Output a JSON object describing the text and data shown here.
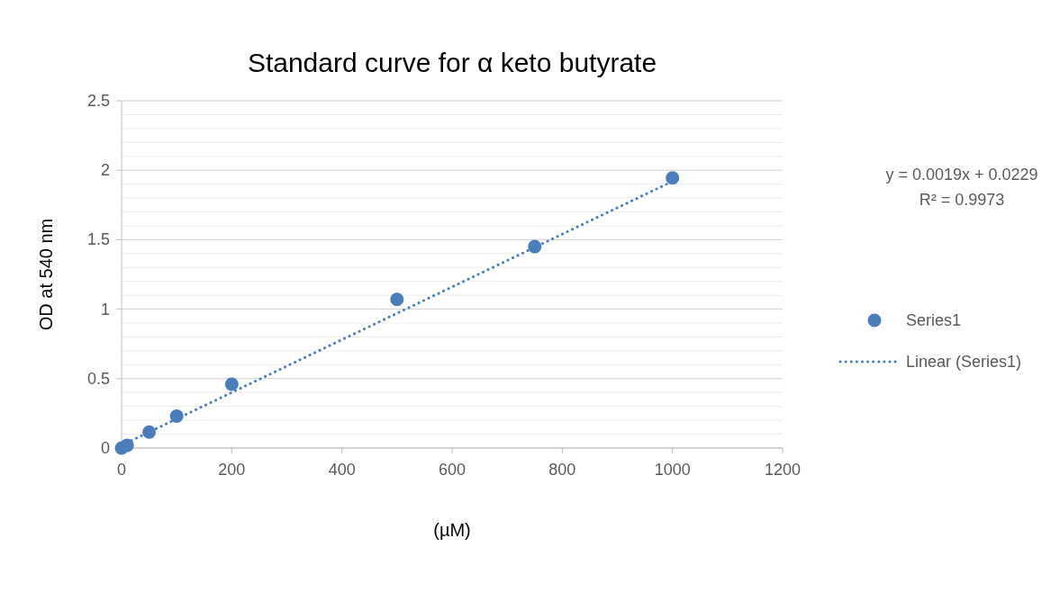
{
  "chart_data": {
    "type": "scatter",
    "title": "Standard curve for α keto butyrate",
    "xlabel": "(µM)",
    "ylabel": "OD at 540 nm",
    "x": [
      0,
      10,
      50,
      100,
      200,
      500,
      750,
      1000
    ],
    "series": [
      {
        "name": "Series1",
        "type": "scatter",
        "color": "#4a7ebb",
        "marker": "circle",
        "values": [
          0,
          0.02,
          0.115,
          0.23,
          0.46,
          1.07,
          1.45,
          1.945
        ]
      },
      {
        "name": "Linear (Series1)",
        "type": "line",
        "color": "#4a7ebb",
        "line_style": "dotted",
        "marker": "none",
        "x": [
          0,
          1000
        ],
        "values": [
          0.02,
          1.92
        ]
      }
    ],
    "xlim": [
      0,
      1200
    ],
    "xticks": [
      0,
      200,
      400,
      600,
      800,
      1000,
      1200
    ],
    "ylim": [
      0,
      2.5
    ],
    "yticks": [
      0,
      {
        "value": 0.1,
        "label": null
      },
      {
        "value": 0.2,
        "label": null
      },
      {
        "value": 0.3,
        "label": null
      },
      {
        "value": 0.4,
        "label": null
      },
      0.5,
      {
        "value": 0.6,
        "label": null
      },
      {
        "value": 0.7,
        "label": null
      },
      {
        "value": 0.8,
        "label": null
      },
      {
        "value": 0.9,
        "label": null
      },
      1,
      {
        "value": 1.1,
        "label": null
      },
      {
        "value": 1.2,
        "label": null
      },
      {
        "value": 1.3,
        "label": null
      },
      {
        "value": 1.4,
        "label": null
      },
      1.5,
      {
        "value": 1.6,
        "label": null
      },
      {
        "value": 1.7,
        "label": null
      },
      {
        "value": 1.8,
        "label": null
      },
      {
        "value": 1.9,
        "label": null
      },
      2,
      {
        "value": 2.1,
        "label": null
      },
      {
        "value": 2.2,
        "label": null
      },
      {
        "value": 2.3,
        "label": null
      },
      {
        "value": 2.4,
        "label": null
      },
      2.5
    ],
    "grid": "y",
    "legend": "right",
    "annotations": [
      "y = 0.0019x + 0.0229",
      "R² = 0.9973"
    ]
  }
}
